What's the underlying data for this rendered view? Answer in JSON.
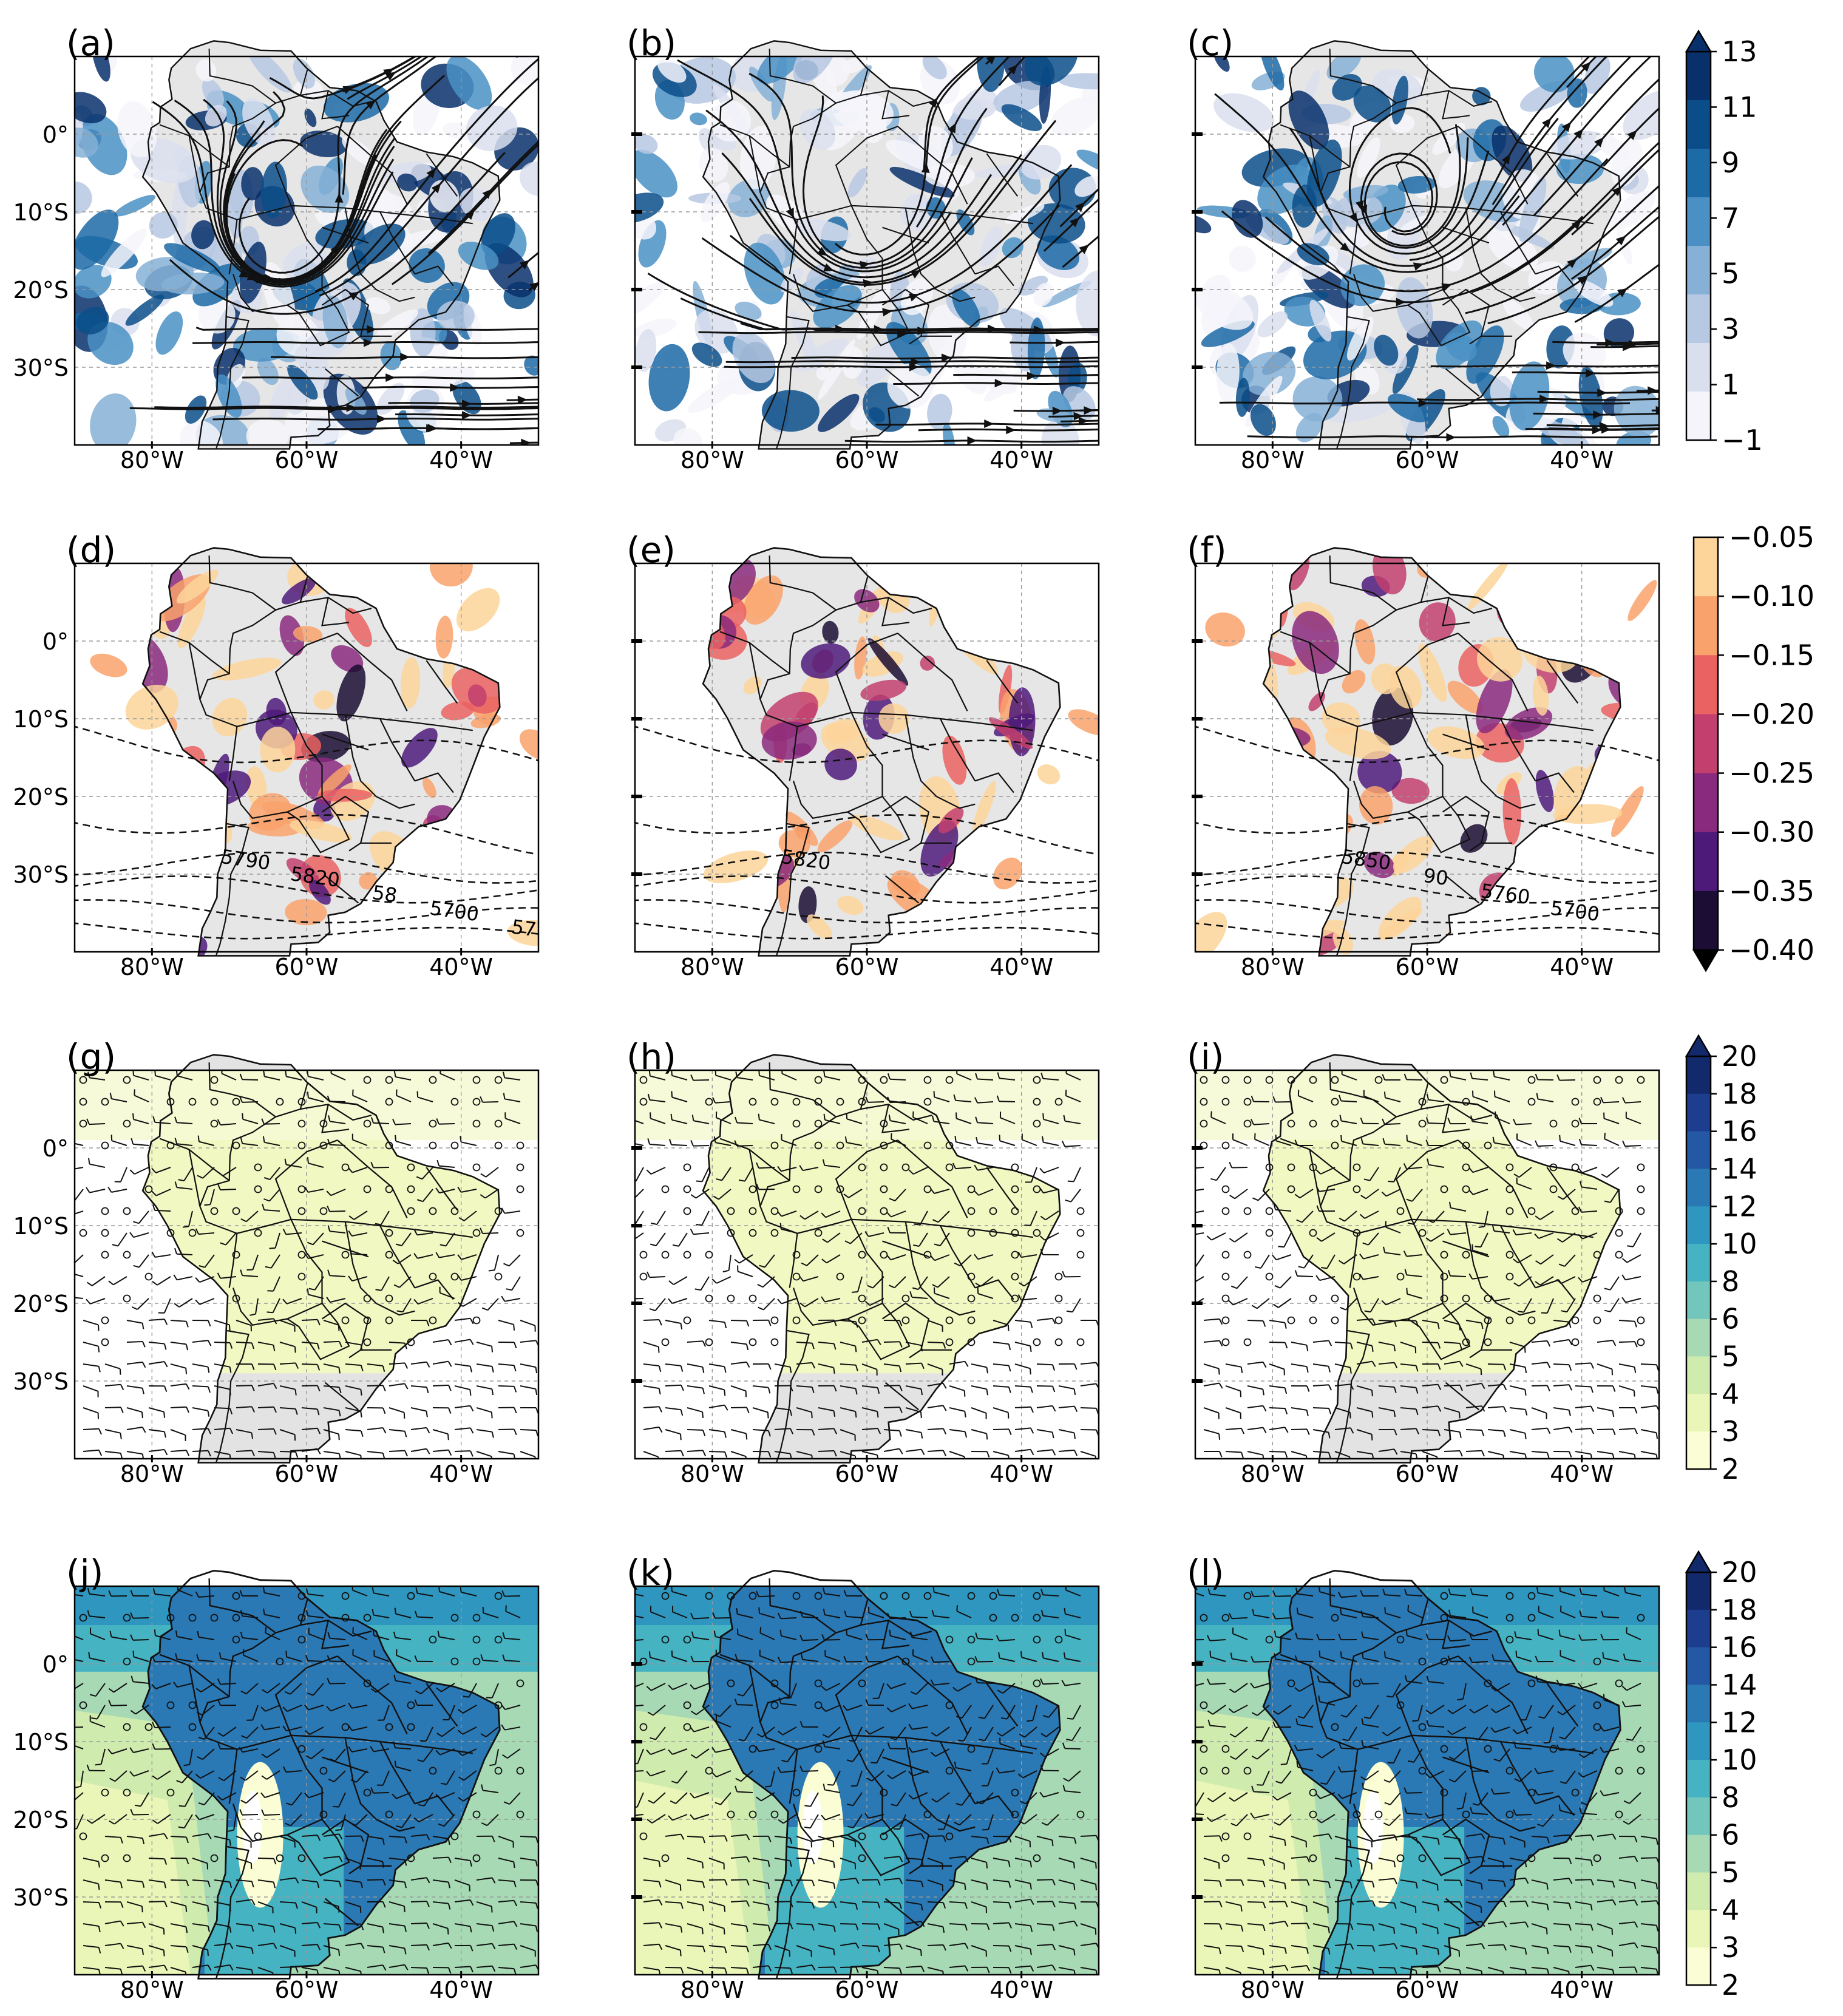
{
  "panels": [
    {
      "label": "(a)",
      "type": "streamlines",
      "cmap": "blues",
      "seed": 11
    },
    {
      "label": "(b)",
      "type": "streamlines",
      "cmap": "blues",
      "seed": 23
    },
    {
      "label": "(c)",
      "type": "streamlines",
      "cmap": "blues",
      "seed": 37
    },
    {
      "label": "(d)",
      "type": "heights",
      "cmap": "magma",
      "seed": 41,
      "contour_labels": [
        "5790",
        "5820",
        "58",
        "5700",
        "57"
      ]
    },
    {
      "label": "(e)",
      "type": "heights",
      "cmap": "magma",
      "seed": 53,
      "contour_labels": [
        "5820"
      ]
    },
    {
      "label": "(f)",
      "type": "heights",
      "cmap": "magma",
      "seed": 67,
      "contour_labels": [
        "5850",
        "90",
        "5760",
        "5700"
      ]
    },
    {
      "label": "(g)",
      "type": "barbs",
      "cmap": "ygb_light",
      "seed": 71
    },
    {
      "label": "(h)",
      "type": "barbs",
      "cmap": "ygb_light",
      "seed": 83
    },
    {
      "label": "(i)",
      "type": "barbs",
      "cmap": "ygb_light",
      "seed": 97
    },
    {
      "label": "(j)",
      "type": "barbs_filled",
      "cmap": "ygb",
      "seed": 101
    },
    {
      "label": "(k)",
      "type": "barbs_filled",
      "cmap": "ygb",
      "seed": 113
    },
    {
      "label": "(l)",
      "type": "barbs_filled",
      "cmap": "ygb",
      "seed": 127
    }
  ],
  "lat_labels": [
    "0°",
    "10°S",
    "20°S",
    "30°S"
  ],
  "lon_labels": [
    "80°W",
    "60°W",
    "40°W"
  ],
  "colorbars": [
    {
      "ticks": [
        "13",
        "11",
        "9",
        "7",
        "5",
        "3",
        "1",
        "−1"
      ],
      "colors": [
        "#08306b",
        "#0b4d88",
        "#1c6aa6",
        "#4a90c4",
        "#86b0d6",
        "#b6c8e2",
        "#dadfee",
        "#f4f4fa"
      ],
      "extend": "max"
    },
    {
      "ticks": [
        "−0.05",
        "−0.10",
        "−0.15",
        "−0.20",
        "−0.25",
        "−0.30",
        "−0.35",
        "−0.40"
      ],
      "colors": [
        "#fdd59a",
        "#f9a26b",
        "#ea6262",
        "#c23f6e",
        "#8a2a7e",
        "#4e1a7a",
        "#1b0d33"
      ],
      "extend": "min"
    },
    {
      "ticks": [
        "20",
        "18",
        "16",
        "14",
        "12",
        "10",
        "8",
        "6",
        "5",
        "4",
        "3",
        "2"
      ],
      "colors": [
        "#122a6b",
        "#1d3e8e",
        "#2458a4",
        "#2a78b4",
        "#2f96bf",
        "#45b3c2",
        "#72c6bb",
        "#a6d9b4",
        "#d0ebae",
        "#eaf6b7",
        "#fbfdd4"
      ],
      "extend": "max"
    },
    {
      "ticks": [
        "20",
        "18",
        "16",
        "14",
        "12",
        "10",
        "8",
        "6",
        "5",
        "4",
        "3",
        "2"
      ],
      "colors": [
        "#122a6b",
        "#1d3e8e",
        "#2458a4",
        "#2a78b4",
        "#2f96bf",
        "#45b3c2",
        "#72c6bb",
        "#a6d9b4",
        "#d0ebae",
        "#eaf6b7",
        "#fbfdd4"
      ],
      "extend": "max"
    }
  ]
}
